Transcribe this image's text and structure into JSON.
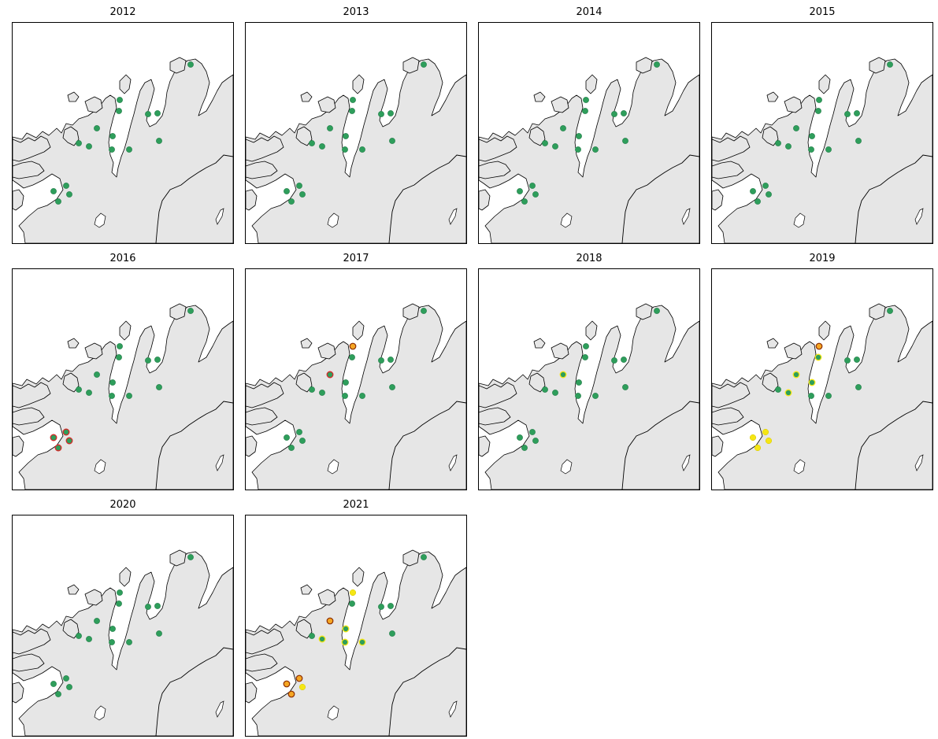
{
  "colors": {
    "green": "#2e9e5b",
    "yellow": "#f5e614",
    "orange": "#f5a623",
    "red": "#d62728",
    "land": "#e6e6e6",
    "sea": "#ffffff"
  },
  "panels": [
    {
      "year": "2012",
      "sites": [
        "G",
        "G",
        "G",
        "G",
        "G",
        "G",
        "G",
        "G",
        "G",
        "G",
        "G",
        "G",
        "G",
        "G",
        "G",
        "G"
      ]
    },
    {
      "year": "2013",
      "sites": [
        "G",
        "G",
        "G",
        "G",
        "G",
        "G",
        "G",
        "G",
        "G",
        "G",
        "G",
        "G",
        "G",
        "G",
        "G",
        "G"
      ]
    },
    {
      "year": "2014",
      "sites": [
        "G",
        "G",
        "G",
        "G",
        "G",
        "G",
        "G",
        "G",
        "G",
        "G",
        "G",
        "G",
        "G",
        "G",
        "G",
        "G"
      ]
    },
    {
      "year": "2015",
      "sites": [
        "G",
        "G",
        "G",
        "G",
        "G",
        "G",
        "G",
        "G",
        "G",
        "G",
        "G",
        "G",
        "G",
        "G",
        "G",
        "G"
      ]
    },
    {
      "year": "2016",
      "sites": [
        "G",
        "G",
        "G",
        "G",
        "G",
        "G",
        "G",
        "G",
        "G",
        "G",
        "G",
        "G",
        "GR",
        "GR",
        "GR",
        "GR"
      ]
    },
    {
      "year": "2017",
      "sites": [
        "G",
        "O",
        "G",
        "GR",
        "G",
        "G",
        "G",
        "G",
        "G",
        "G",
        "G",
        "G",
        "G",
        "G",
        "G",
        "G"
      ]
    },
    {
      "year": "2018",
      "sites": [
        "G",
        "G",
        "G",
        "GY",
        "G",
        "G",
        "G",
        "G",
        "G",
        "G",
        "G",
        "G",
        "G",
        "G",
        "G",
        "G"
      ]
    },
    {
      "year": "2019",
      "sites": [
        "G",
        "O",
        "GY",
        "GY",
        "G",
        "GY",
        "GY",
        "G",
        "G",
        "G",
        "G",
        "G",
        "Y",
        "Y",
        "Y",
        "Y"
      ]
    },
    {
      "year": "2020",
      "sites": [
        "G",
        "G",
        "G",
        "G",
        "G",
        "G",
        "G",
        "G",
        "G",
        "G",
        "G",
        "G",
        "G",
        "G",
        "G",
        "G"
      ]
    },
    {
      "year": "2021",
      "sites": [
        "G",
        "Y",
        "G",
        "O",
        "G",
        "GY",
        "GY",
        "GY",
        "GY",
        "G",
        "G",
        "G",
        "O",
        "O",
        "Y",
        "O"
      ]
    }
  ]
}
